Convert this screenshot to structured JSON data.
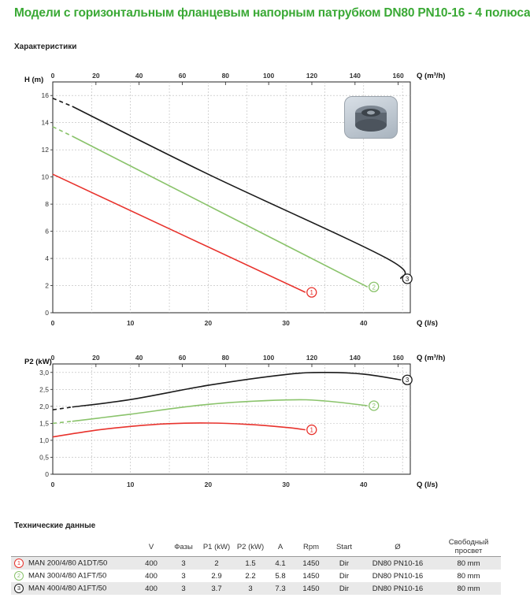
{
  "title": "Модели с горизонтальным фланцевым напорным патрубком DN80 PN10-16 - 4 полюса",
  "section_characteristics": "Характеристики",
  "section_tech": "Технические данные",
  "colors": {
    "title": "#3aa935",
    "series1": "#e8322c",
    "series2": "#8ac36b",
    "series3": "#1a1a1a"
  },
  "pump_image": "pump-impeller-photo",
  "chart_data": [
    {
      "type": "line",
      "title": "",
      "ylabel": "H (m)",
      "xlabel": "Q (l/s)",
      "xlabel_top": "Q (m³/h)",
      "xlim": [
        0,
        46
      ],
      "ylim": [
        0,
        17
      ],
      "x_ticks": [
        "0",
        "10",
        "20",
        "30",
        "40"
      ],
      "x_ticks_top": [
        "0",
        "20",
        "40",
        "60",
        "80",
        "100",
        "120",
        "140",
        "160"
      ],
      "y_ticks": [
        "0",
        "2",
        "4",
        "6",
        "8",
        "10",
        "12",
        "14",
        "16"
      ],
      "grid": true,
      "series": [
        {
          "name": "1",
          "dashed_until": 0,
          "x": [
            0,
            32.5
          ],
          "y": [
            10.2,
            1.5
          ]
        },
        {
          "name": "2",
          "dashed_until": 2.5,
          "x": [
            0,
            2.5,
            40.5
          ],
          "y": [
            13.7,
            13.0,
            1.9
          ]
        },
        {
          "name": "3",
          "dashed_until": 2.5,
          "x": [
            0,
            2.5,
            20,
            43,
            44.8
          ],
          "y": [
            15.8,
            15.2,
            10.2,
            4.0,
            2.5
          ]
        }
      ]
    },
    {
      "type": "line",
      "title": "",
      "ylabel": "P2 (kW)",
      "xlabel": "Q (l/s)",
      "xlabel_top": "Q (m³/h)",
      "xlim": [
        0,
        46
      ],
      "ylim": [
        0,
        3.25
      ],
      "x_ticks": [
        "0",
        "10",
        "20",
        "30",
        "40"
      ],
      "x_ticks_top": [
        "0",
        "20",
        "40",
        "60",
        "80",
        "100",
        "120",
        "140",
        "160"
      ],
      "y_ticks": [
        "0",
        "0,5",
        "1,0",
        "1,5",
        "2,0",
        "2,5",
        "3,0"
      ],
      "grid": true,
      "series": [
        {
          "name": "1",
          "dashed_until": 0,
          "x": [
            0,
            5,
            10,
            15,
            20,
            25,
            30,
            32.5
          ],
          "y": [
            1.1,
            1.28,
            1.41,
            1.49,
            1.51,
            1.47,
            1.38,
            1.31
          ]
        },
        {
          "name": "2",
          "dashed_until": 2.5,
          "x": [
            0,
            2.5,
            10,
            20,
            30,
            35,
            40.5
          ],
          "y": [
            1.5,
            1.56,
            1.77,
            2.06,
            2.19,
            2.16,
            2.02
          ]
        },
        {
          "name": "3",
          "dashed_until": 2.5,
          "x": [
            0,
            2.5,
            10,
            20,
            30,
            35,
            40,
            44.8
          ],
          "y": [
            1.9,
            1.98,
            2.2,
            2.62,
            2.94,
            3.0,
            2.95,
            2.78
          ]
        }
      ]
    }
  ],
  "table": {
    "headers": [
      "",
      "V",
      "Фазы",
      "P1 (kW)",
      "P2 (kW)",
      "A",
      "Rpm",
      "Start",
      "Ø",
      "Свободный просвет"
    ],
    "rows": [
      {
        "badge": "1",
        "model": "MAN 200/4/80 A1DT/50",
        "v": "400",
        "phases": "3",
        "p1": "2",
        "p2": "1.5",
        "a": "4.1",
        "rpm": "1450",
        "start": "Dir",
        "dn": "DN80 PN10-16",
        "clearance": "80 mm"
      },
      {
        "badge": "2",
        "model": "MAN 300/4/80 A1FT/50",
        "v": "400",
        "phases": "3",
        "p1": "2.9",
        "p2": "2.2",
        "a": "5.8",
        "rpm": "1450",
        "start": "Dir",
        "dn": "DN80 PN10-16",
        "clearance": "80 mm"
      },
      {
        "badge": "3",
        "model": "MAN 400/4/80 A1FT/50",
        "v": "400",
        "phases": "3",
        "p1": "3.7",
        "p2": "3",
        "a": "7.3",
        "rpm": "1450",
        "start": "Dir",
        "dn": "DN80 PN10-16",
        "clearance": "80 mm"
      }
    ]
  }
}
